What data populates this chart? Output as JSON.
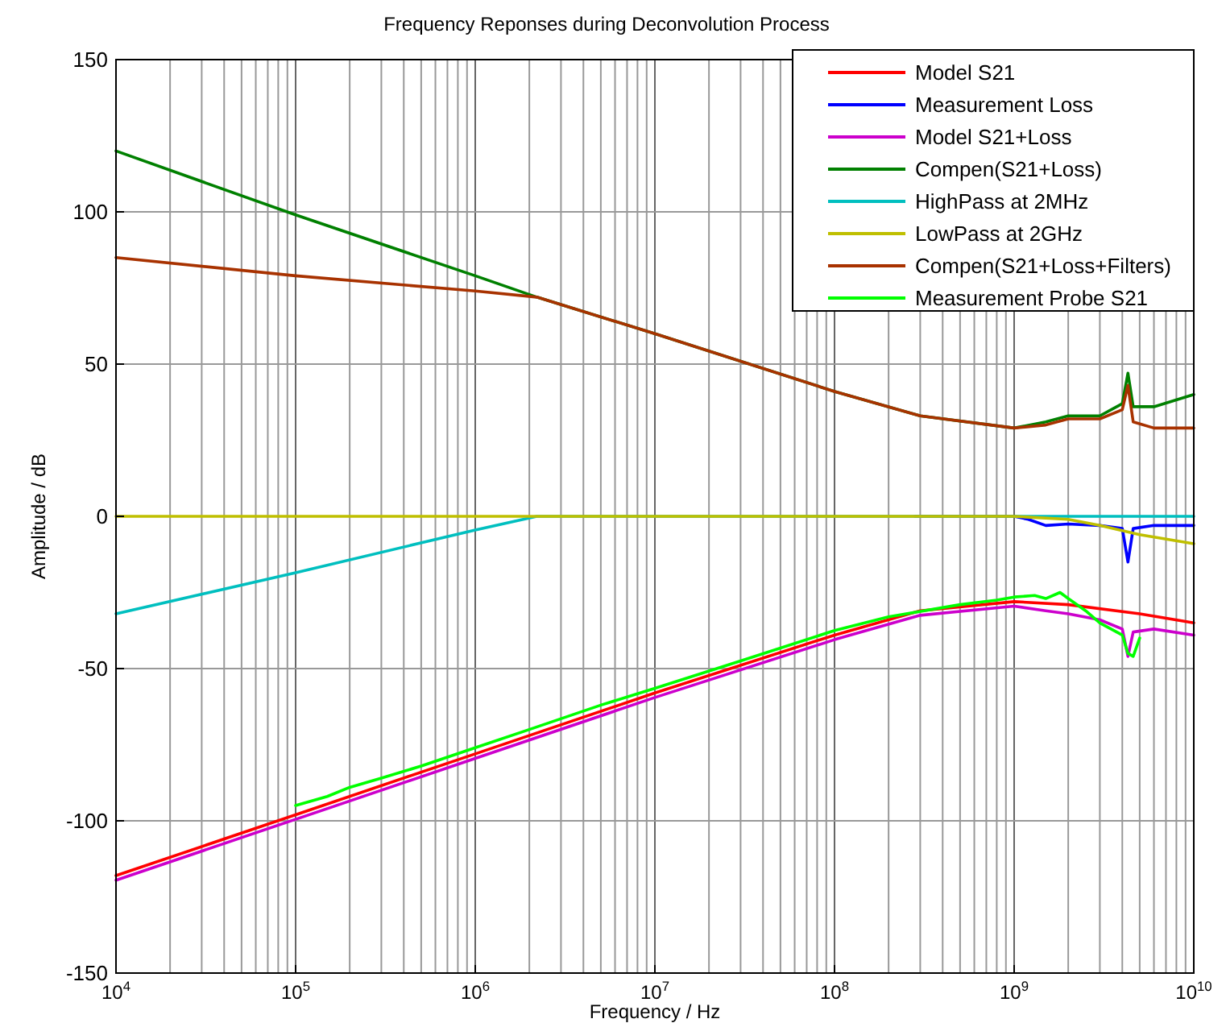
{
  "chart_data": {
    "type": "line",
    "title": "Frequency Reponses during Deconvolution Process",
    "xlabel": "Frequency / Hz",
    "ylabel": "Amplitude / dB",
    "log": "x",
    "grid": true,
    "legend": "top right",
    "line_style": "solid",
    "marker": "none",
    "xlim": [
      10000,
      10000000000
    ],
    "xticks": [
      {
        "value": 10000,
        "label": "10$^{4}$"
      },
      {
        "value": 100000,
        "label": "10$^{5}$"
      },
      {
        "value": 1000000,
        "label": "10$^{6}$"
      },
      {
        "value": 10000000,
        "label": "10$^{7}$"
      },
      {
        "value": 100000000,
        "label": "10$^{8}$"
      },
      {
        "value": 1000000000,
        "label": "10$^{9}$"
      },
      {
        "value": 10000000000,
        "label": "10$^{10}$"
      }
    ],
    "ylim": [
      -150,
      150
    ],
    "yticks": [
      -150,
      -100,
      -50,
      0,
      50,
      100,
      150
    ],
    "series": [
      {
        "name": "Model S21",
        "color": "#ff0000",
        "x": [
          10000,
          100000,
          1000000,
          10000000,
          100000000,
          300000000,
          1000000000,
          2000000000,
          5000000000,
          10000000000
        ],
        "values": [
          -118,
          -98,
          -78,
          -58,
          -39,
          -31,
          -28,
          -29,
          -32,
          -35
        ]
      },
      {
        "name": "Measurement Loss",
        "color": "#0000ff",
        "x": [
          280000000,
          1000000000,
          1200000000,
          1500000000,
          2000000000,
          3000000000,
          4000000000,
          4300000000,
          4600000000,
          6000000000,
          10000000000
        ],
        "values": [
          0,
          0,
          -1,
          -3,
          -2.5,
          -3,
          -4,
          -15,
          -4,
          -3,
          -3
        ]
      },
      {
        "name": "Model S21+Loss",
        "color": "#cc00cc",
        "x": [
          10000,
          100000,
          1000000,
          10000000,
          100000000,
          300000000,
          1000000000,
          1500000000,
          2000000000,
          3000000000,
          4000000000,
          4300000000,
          4600000000,
          6000000000,
          10000000000
        ],
        "values": [
          -119.5,
          -99.5,
          -79.5,
          -59.5,
          -40.5,
          -32.5,
          -29.5,
          -31,
          -32,
          -34,
          -37,
          -46,
          -38,
          -37,
          -39
        ]
      },
      {
        "name": "Compen(S21+Loss)",
        "color": "#008000",
        "x": [
          10000,
          100000,
          1000000,
          2200000,
          10000000,
          100000000,
          300000000,
          1000000000,
          1500000000,
          2000000000,
          3000000000,
          4000000000,
          4300000000,
          4600000000,
          6000000000,
          10000000000
        ],
        "values": [
          120,
          99,
          79,
          72,
          60,
          41,
          33,
          29,
          31,
          33,
          33,
          37,
          47,
          36,
          36,
          40
        ]
      },
      {
        "name": "HighPass at 2MHz",
        "color": "#00bfbf",
        "x": [
          10000,
          100000,
          1000000,
          2200000,
          10000000000
        ],
        "values": [
          -32,
          -18.5,
          -4.5,
          0,
          0
        ]
      },
      {
        "name": "LowPass at 2GHz",
        "color": "#bfbf00",
        "x": [
          10000,
          1000000000,
          2000000000,
          3000000000,
          5000000000,
          10000000000
        ],
        "values": [
          0,
          0,
          -1,
          -3,
          -6,
          -9
        ]
      },
      {
        "name": "Compen(S21+Loss+Filters)",
        "color": "#a83200",
        "x": [
          10000,
          100000,
          1000000,
          2200000,
          10000000,
          100000000,
          300000000,
          1000000000,
          1500000000,
          2000000000,
          3000000000,
          4000000000,
          4300000000,
          4600000000,
          6000000000,
          10000000000
        ],
        "values": [
          85,
          79,
          74,
          72,
          60,
          41,
          33,
          29,
          30,
          32,
          32,
          35,
          43,
          31,
          29,
          29
        ]
      },
      {
        "name": "Measurement Probe S21",
        "color": "#00ff00",
        "x": [
          100000,
          150000,
          200000,
          300000,
          500000,
          1000000,
          2000000,
          5000000,
          10000000,
          30000000,
          100000000,
          200000000,
          500000000,
          800000000,
          1000000000,
          1300000000,
          1500000000,
          1800000000,
          2000000000,
          2500000000,
          3000000000,
          4000000000,
          4300000000,
          4600000000,
          5000000000
        ],
        "values": [
          -95,
          -92,
          -89,
          -86,
          -82,
          -76,
          -70,
          -62,
          -56.5,
          -47.5,
          -37.5,
          -33,
          -29,
          -27.5,
          -26.5,
          -26,
          -27,
          -25,
          -27,
          -31,
          -35,
          -39,
          -45,
          -46,
          -40
        ]
      }
    ]
  }
}
